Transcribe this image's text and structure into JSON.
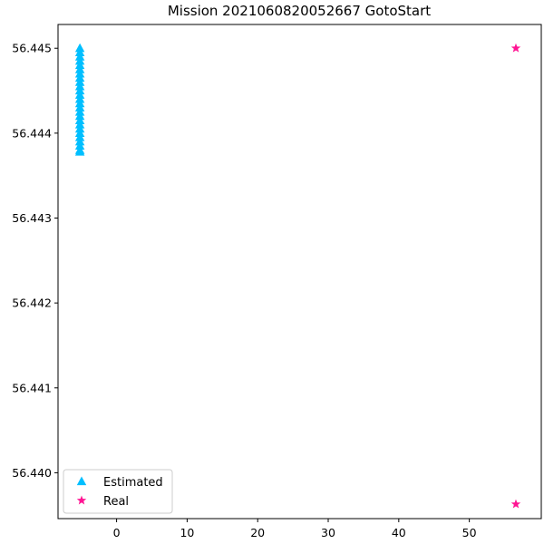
{
  "chart_data": {
    "type": "scatter",
    "title": "Mission 2021060820052667 GotoStart",
    "xlabel": "",
    "ylabel": "",
    "xlim": [
      -8.3,
      60.2
    ],
    "ylim": [
      56.43946,
      56.44528
    ],
    "x_ticks": [
      0,
      10,
      20,
      30,
      40,
      50
    ],
    "x_tick_labels": [
      "0",
      "10",
      "20",
      "30",
      "40",
      "50"
    ],
    "y_ticks": [
      56.44,
      56.441,
      56.442,
      56.443,
      56.444,
      56.445
    ],
    "y_tick_labels": [
      "56.440",
      "56.441",
      "56.442",
      "56.443",
      "56.444",
      "56.445"
    ],
    "grid": false,
    "legend_position": "lower-left",
    "series": [
      {
        "name": "Estimated",
        "marker": "triangle",
        "color": "#00bfff",
        "x": [
          -5.2,
          -5.2,
          -5.2,
          -5.2,
          -5.2,
          -5.2,
          -5.2,
          -5.2,
          -5.2,
          -5.2,
          -5.2,
          -5.2,
          -5.2,
          -5.2,
          -5.2,
          -5.2,
          -5.2,
          -5.2,
          -5.2,
          -5.2,
          -5.2,
          -5.2,
          -5.2,
          -5.2,
          -5.2,
          -5.2
        ],
        "y": [
          56.445,
          56.44495,
          56.4449,
          56.44485,
          56.4448,
          56.44475,
          56.4447,
          56.44465,
          56.4446,
          56.44455,
          56.4445,
          56.44445,
          56.4444,
          56.44435,
          56.4443,
          56.44425,
          56.4442,
          56.44415,
          56.4441,
          56.44405,
          56.444,
          56.44395,
          56.4439,
          56.44385,
          56.4438,
          56.44378
        ]
      },
      {
        "name": "Real",
        "marker": "star",
        "color": "#ff1493",
        "x": [
          56.6,
          56.6
        ],
        "y": [
          56.445,
          56.43963
        ]
      }
    ]
  }
}
